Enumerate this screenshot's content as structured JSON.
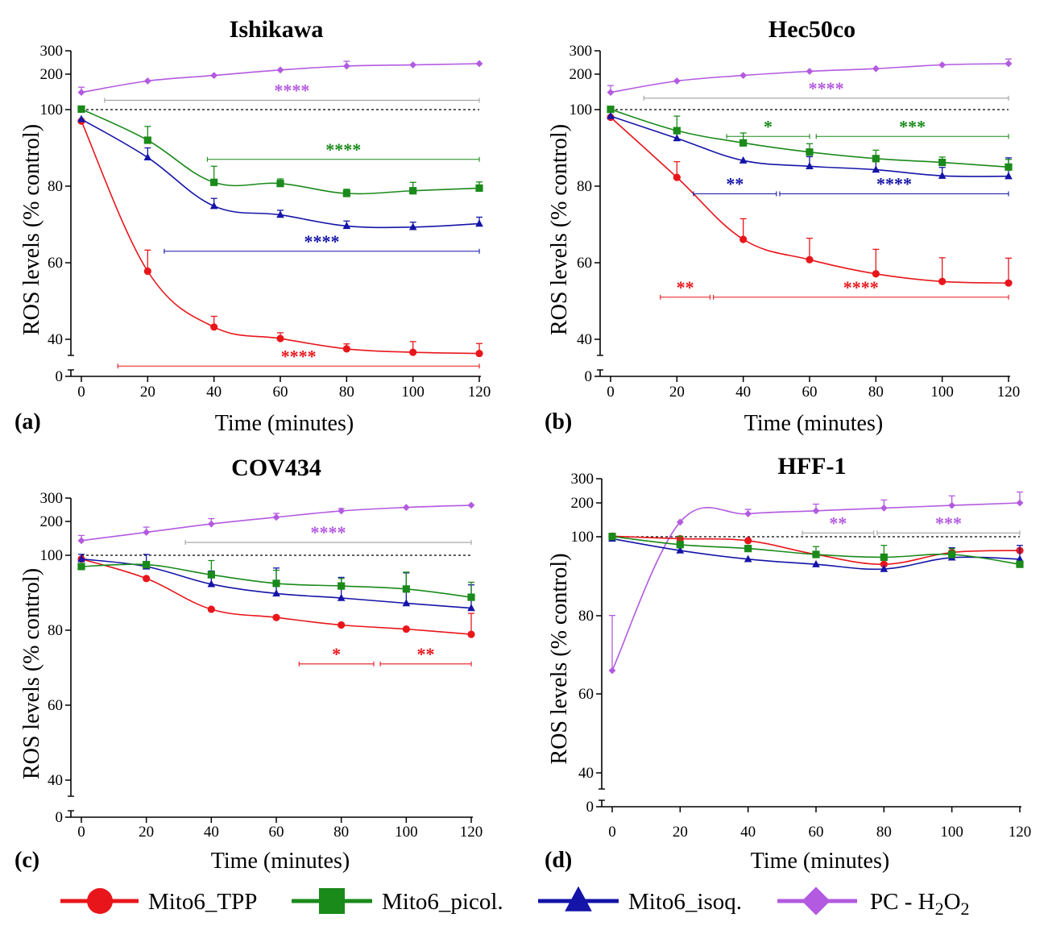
{
  "colors": {
    "Mito6_TPP": "#e8161b",
    "Mito6_picol.": "#1a8a1a",
    "Mito6_isoq.": "#1414a8",
    "PC - H2O2": "#b35ae0",
    "brackets_PC": "#a0a0a0"
  },
  "legend": [
    {
      "series": "Mito6_TPP",
      "label": "Mito6_TPP",
      "marker": "circle"
    },
    {
      "series": "Mito6_picol.",
      "label": "Mito6_picol.",
      "marker": "square"
    },
    {
      "series": "Mito6_isoq.",
      "label": "Mito6_isoq.",
      "marker": "triangle"
    },
    {
      "series": "PC - H2O2",
      "label": "PC - H",
      "label_sub1": "2",
      "label_mid": "O",
      "label_sub2": "2",
      "marker": "diamond"
    }
  ],
  "chart_data": [
    {
      "type": "line",
      "panel": "(a)",
      "title": "Ishikawa",
      "xlabel": "Time (minutes)",
      "ylabel": "ROS levels (% control)",
      "xlim": [
        0,
        120
      ],
      "xticks": [
        0,
        20,
        40,
        60,
        80,
        100,
        120
      ],
      "yticks": [
        "0",
        "40",
        "60",
        "80",
        "100",
        "200",
        "300"
      ],
      "y_scale": "broken: linear 40-100, log-like 100-300, break below 40",
      "x": [
        0,
        20,
        40,
        60,
        80,
        100,
        120
      ],
      "reference_line": 100,
      "series": [
        {
          "name": "Mito6_TPP",
          "values": [
            97,
            57.8,
            43.2,
            40.2,
            37.5,
            36.6,
            36.3
          ],
          "errors": [
            0,
            5.5,
            2.8,
            1.5,
            1.3,
            2.8,
            2.6
          ]
        },
        {
          "name": "Mito6_picol.",
          "values": [
            101,
            92,
            81,
            80.7,
            78.1,
            78.8,
            79.5
          ],
          "errors": [
            0,
            3.6,
            4.2,
            1.2,
            1.1,
            2.2,
            1.6
          ]
        },
        {
          "name": "Mito6_isoq.",
          "values": [
            97.5,
            87.5,
            74.8,
            72.5,
            69.6,
            69.3,
            70.2
          ],
          "errors": [
            0,
            2.5,
            2.0,
            1.2,
            1.3,
            1.3,
            1.7
          ]
        },
        {
          "name": "PC - H2O2",
          "values": [
            140,
            175,
            195,
            215,
            230,
            235,
            240
          ],
          "errors": [
            15,
            0,
            0,
            0,
            20,
            0,
            0
          ]
        }
      ],
      "annotations": [
        {
          "series": "PC - H2O2",
          "text": "****",
          "x_range": [
            7,
            120
          ],
          "y_ref": 120
        },
        {
          "series": "Mito6_picol.",
          "text": "****",
          "x_range": [
            38,
            120
          ],
          "y_ref": 87
        },
        {
          "series": "Mito6_isoq.",
          "text": "****",
          "x_range": [
            25,
            120
          ],
          "y_ref": 63
        },
        {
          "series": "Mito6_TPP",
          "text": "****",
          "x_range": [
            11,
            120
          ],
          "y_ref": 33
        }
      ]
    },
    {
      "type": "line",
      "panel": "(b)",
      "title": "Hec50co",
      "xlabel": "Time (minutes)",
      "ylabel": "ROS levels (% control)",
      "xlim": [
        0,
        120
      ],
      "xticks": [
        0,
        20,
        40,
        60,
        80,
        100,
        120
      ],
      "yticks": [
        "0",
        "40",
        "60",
        "80",
        "100",
        "200",
        "300"
      ],
      "x": [
        0,
        20,
        40,
        60,
        80,
        100,
        120
      ],
      "reference_line": 100,
      "series": [
        {
          "name": "Mito6_TPP",
          "values": [
            98,
            82.3,
            66.1,
            60.8,
            57.1,
            55.1,
            54.7
          ],
          "errors": [
            0,
            4.1,
            5.4,
            5.6,
            6.4,
            6.2,
            6.5
          ]
        },
        {
          "name": "Mito6_picol.",
          "values": [
            100.5,
            94.5,
            91.3,
            88.9,
            87.2,
            86.2,
            85
          ],
          "errors": [
            0,
            3.8,
            2.6,
            2.2,
            2.2,
            1.4,
            2.0
          ]
        },
        {
          "name": "Mito6_isoq.",
          "values": [
            98.3,
            92.5,
            86.7,
            85.2,
            84.3,
            82.7,
            82.6
          ],
          "errors": [
            0,
            2.6,
            0,
            2.5,
            2.2,
            2.2,
            4.8
          ]
        },
        {
          "name": "PC - H2O2",
          "values": [
            140,
            175,
            195,
            210,
            220,
            235,
            240
          ],
          "errors": [
            20,
            0,
            0,
            0,
            0,
            0,
            20
          ]
        }
      ],
      "annotations": [
        {
          "series": "PC - H2O2",
          "text": "****",
          "x_range": [
            10,
            120
          ],
          "y_ref": 125
        },
        {
          "series": "Mito6_picol.",
          "text": "*",
          "x_range": [
            35,
            60
          ],
          "y_ref": 93
        },
        {
          "series": "Mito6_picol.",
          "text": "***",
          "x_range": [
            62,
            120
          ],
          "y_ref": 93
        },
        {
          "series": "Mito6_isoq.",
          "text": "**",
          "x_range": [
            25,
            50
          ],
          "y_ref": 78
        },
        {
          "series": "Mito6_isoq.",
          "text": "****",
          "x_range": [
            51,
            120
          ],
          "y_ref": 78
        },
        {
          "series": "Mito6_TPP",
          "text": "**",
          "x_range": [
            15,
            30
          ],
          "y_ref": 51
        },
        {
          "series": "Mito6_TPP",
          "text": "****",
          "x_range": [
            31,
            120
          ],
          "y_ref": 51
        }
      ]
    },
    {
      "type": "line",
      "panel": "(c)",
      "title": "COV434",
      "xlabel": "Time (minutes)",
      "ylabel": "ROS levels (% control)",
      "xlim": [
        0,
        120
      ],
      "xticks": [
        0,
        20,
        40,
        60,
        80,
        100,
        120
      ],
      "yticks": [
        "0",
        "40",
        "60",
        "80",
        "100",
        "200",
        "300"
      ],
      "x": [
        0,
        20,
        40,
        60,
        80,
        100,
        120
      ],
      "reference_line": 100,
      "series": [
        {
          "name": "Mito6_TPP",
          "values": [
            99,
            93.8,
            85.6,
            83.4,
            81.4,
            80.3,
            78.9
          ],
          "errors": [
            0,
            0,
            0,
            0,
            0,
            0,
            5.6
          ]
        },
        {
          "name": "Mito6_picol.",
          "values": [
            97,
            97.5,
            94.8,
            92.5,
            91.8,
            91,
            88.8
          ],
          "errors": [
            0,
            0,
            3.8,
            3.5,
            2.0,
            4.5,
            4.0
          ]
        },
        {
          "name": "Mito6_isoq.",
          "values": [
            99,
            97,
            92.3,
            89.8,
            88.6,
            87.2,
            85.9
          ],
          "errors": [
            3,
            4.8,
            3.5,
            6.8,
            5.5,
            8.1,
            6.2
          ]
        },
        {
          "name": "PC - H2O2",
          "values": [
            135,
            160,
            190,
            215,
            240,
            255,
            265
          ],
          "errors": [
            15,
            18,
            20,
            15,
            10,
            0,
            0
          ]
        }
      ],
      "annotations": [
        {
          "series": "PC - H2O2",
          "text": "****",
          "x_range": [
            32,
            120
          ],
          "y_ref": 130
        },
        {
          "series": "Mito6_TPP",
          "text": "*",
          "x_range": [
            67,
            90
          ],
          "y_ref": 71
        },
        {
          "series": "Mito6_TPP",
          "text": "**",
          "x_range": [
            92,
            120
          ],
          "y_ref": 71
        }
      ]
    },
    {
      "type": "line",
      "panel": "(d)",
      "title": "HFF-1",
      "xlabel": "Time (minutes)",
      "ylabel": "ROS levels (% control)",
      "xlim": [
        0,
        120
      ],
      "xticks": [
        0,
        20,
        40,
        60,
        80,
        100,
        120
      ],
      "yticks": [
        "0",
        "40",
        "60",
        "80",
        "100",
        "200",
        "300"
      ],
      "x": [
        0,
        20,
        40,
        60,
        80,
        100,
        120
      ],
      "reference_line": 100,
      "series": [
        {
          "name": "Mito6_TPP",
          "values": [
            101,
            99.5,
            99,
            95.5,
            93,
            96,
            96.5
          ],
          "errors": [
            0,
            0,
            0,
            0,
            0,
            0,
            0
          ]
        },
        {
          "name": "Mito6_picol.",
          "values": [
            100.5,
            98,
            97,
            95.5,
            94.8,
            95.5,
            93
          ],
          "errors": [
            0,
            3.0,
            0,
            2.0,
            3.0,
            1.5,
            0
          ]
        },
        {
          "name": "Mito6_isoq.",
          "values": [
            99.5,
            96.5,
            94.3,
            93,
            91.8,
            94.7,
            94.3
          ],
          "errors": [
            0,
            0,
            0,
            0,
            0,
            2.5,
            3.5
          ]
        },
        {
          "name": "PC - H2O2",
          "values": [
            66,
            135,
            160,
            170,
            180,
            190,
            200
          ],
          "errors": [
            14,
            0,
            15,
            25,
            30,
            35,
            40
          ]
        }
      ],
      "annotations": [
        {
          "series": "PC - H2O2",
          "text": "**",
          "x_range": [
            56,
            77
          ],
          "y_ref": 108
        },
        {
          "series": "PC - H2O2",
          "text": "***",
          "x_range": [
            78,
            120
          ],
          "y_ref": 108
        }
      ]
    }
  ]
}
